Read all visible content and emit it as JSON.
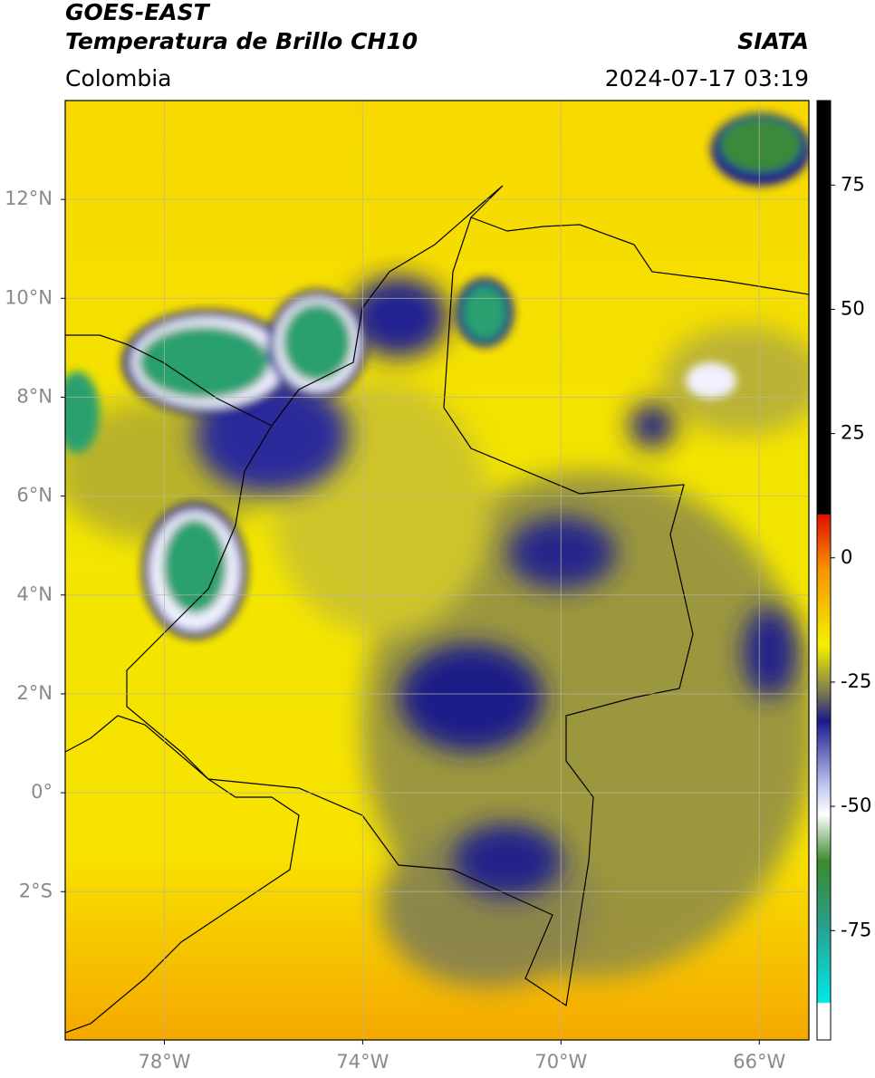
{
  "header": {
    "satellite": "GOES-EAST",
    "product": "Temperatura de Brillo CH10",
    "agency": "SIATA",
    "region": "Colombia",
    "timestamp": "2024-07-17 03:19"
  },
  "map": {
    "lonlim": [
      -80,
      -65
    ],
    "latlim": [
      -5,
      14
    ],
    "lonticks": [
      {
        "value": -78,
        "label": "78°W"
      },
      {
        "value": -74,
        "label": "74°W"
      },
      {
        "value": -70,
        "label": "70°W"
      },
      {
        "value": -66,
        "label": "66°W"
      }
    ],
    "latticks": [
      {
        "value": -2,
        "label": "2°S"
      },
      {
        "value": 0,
        "label": "0°"
      },
      {
        "value": 2,
        "label": "2°N"
      },
      {
        "value": 4,
        "label": "4°N"
      },
      {
        "value": 6,
        "label": "6°N"
      },
      {
        "value": 8,
        "label": "8°N"
      },
      {
        "value": 10,
        "label": "10°N"
      },
      {
        "value": 12,
        "label": "12°N"
      }
    ],
    "grid": true
  },
  "colorbar": {
    "lim": [
      -97,
      92
    ],
    "ticks": [
      75,
      50,
      25,
      0,
      -25,
      -50,
      -75
    ]
  }
}
